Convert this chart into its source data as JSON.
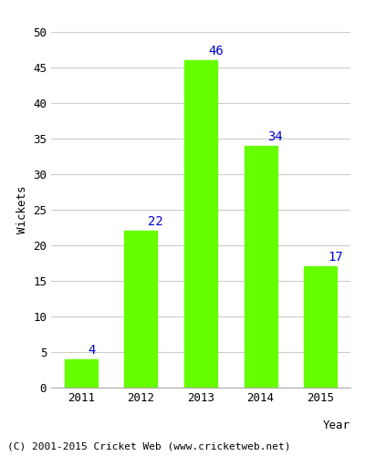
{
  "categories": [
    "2011",
    "2012",
    "2013",
    "2014",
    "2015"
  ],
  "values": [
    4,
    22,
    46,
    34,
    17
  ],
  "bar_color": "#66ff00",
  "bar_edgecolor": "#66ff00",
  "label_color": "#0000cc",
  "label_fontsize": 10,
  "xlabel": "Year",
  "ylabel": "Wickets",
  "ylim": [
    0,
    50
  ],
  "yticks": [
    0,
    5,
    10,
    15,
    20,
    25,
    30,
    35,
    40,
    45,
    50
  ],
  "footnote": "(C) 2001-2015 Cricket Web (www.cricketweb.net)",
  "footnote_fontsize": 8,
  "background_color": "#ffffff",
  "grid_color": "#cccccc",
  "axis_label_fontsize": 9,
  "tick_fontsize": 9
}
